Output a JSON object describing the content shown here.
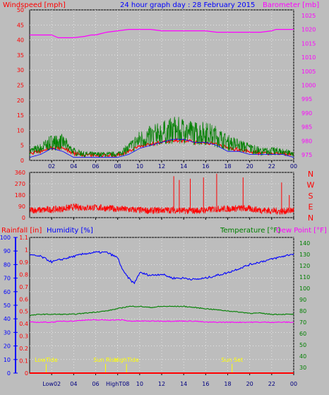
{
  "colors": {
    "background": "#bdbdbd",
    "grid": "#ffffff",
    "wind": "#ff0000",
    "wind_gust": "#008000",
    "wind_avg": "#0000ff",
    "barometer": "#ff00ff",
    "direction": "#ff0000",
    "rain": "#ff0000",
    "humidity": "#0000ff",
    "temperature": "#008000",
    "dewpoint": "#ff00ff",
    "annotation": "#ffff00"
  },
  "top": {
    "left_title": "Windspeed [mph]",
    "center_title": "24 hour graph day : 28 February 2015",
    "right_title": "Barometer [mb]"
  },
  "chart_data": [
    {
      "type": "line",
      "name": "wind_pressure",
      "x_ticks": [
        "02",
        "04",
        "06",
        "08",
        "10",
        "12",
        "14",
        "16",
        "18",
        "20",
        "22",
        "00"
      ],
      "left_axis": {
        "label": "Windspeed [mph]",
        "ticks": [
          0,
          5,
          10,
          15,
          20,
          25,
          30,
          35,
          40,
          45,
          50
        ],
        "ylim": [
          0,
          50
        ]
      },
      "right_axis": {
        "label": "Barometer [mb]",
        "ticks": [
          975,
          980,
          985,
          990,
          995,
          1000,
          1005,
          1010,
          1015,
          1020,
          1025
        ],
        "ylim": [
          973,
          1027
        ]
      },
      "x_hours": [
        0,
        1,
        2,
        3,
        4,
        5,
        6,
        7,
        8,
        9,
        10,
        11,
        12,
        13,
        14,
        15,
        16,
        17,
        18,
        19,
        20,
        21,
        22,
        23,
        24
      ],
      "wind_gust": [
        3,
        4,
        6,
        6,
        3,
        2,
        2,
        2,
        2,
        4,
        7,
        8,
        9,
        10,
        10,
        9,
        9,
        8,
        6,
        5,
        4,
        3,
        3,
        3,
        2
      ],
      "wind_avg": [
        1,
        2,
        4,
        3,
        1,
        1,
        1,
        1,
        1,
        2,
        4,
        5,
        6,
        7,
        7,
        6,
        6,
        5,
        3,
        3,
        2,
        2,
        2,
        2,
        1
      ],
      "barometer_x": [
        0,
        1,
        2,
        2.6,
        3,
        4,
        5,
        5.6,
        6,
        6.5,
        7,
        8,
        9,
        10,
        11,
        12,
        13,
        14,
        15,
        16,
        17,
        18,
        19,
        20,
        21,
        22,
        22.4,
        23,
        24
      ],
      "barometer": [
        1018,
        1018,
        1018,
        1017,
        1017,
        1017,
        1017.5,
        1018,
        1018,
        1018.5,
        1019,
        1019.5,
        1020,
        1020,
        1020,
        1019.5,
        1019.5,
        1019.5,
        1019.5,
        1019.5,
        1019,
        1019,
        1019,
        1019,
        1019,
        1019.5,
        1020,
        1020,
        1020
      ]
    },
    {
      "type": "scatter",
      "name": "wind_direction",
      "x_ticks": [
        "02",
        "04",
        "06",
        "08",
        "10",
        "12",
        "14",
        "16",
        "18",
        "20",
        "22",
        "00"
      ],
      "left_axis": {
        "ticks": [
          0,
          90,
          180,
          270,
          360
        ],
        "ylim": [
          0,
          360
        ]
      },
      "right_axis": {
        "labels": [
          "N",
          "W",
          "S",
          "E",
          "N"
        ]
      },
      "x_hours": [
        0,
        1,
        2,
        3,
        4,
        5,
        6,
        7,
        8,
        9,
        10,
        11,
        12,
        13,
        14,
        15,
        16,
        17,
        18,
        19,
        20,
        21,
        22,
        23,
        24
      ],
      "direction": [
        60,
        60,
        65,
        70,
        85,
        80,
        80,
        75,
        70,
        65,
        60,
        55,
        60,
        60,
        55,
        55,
        60,
        70,
        70,
        75,
        70,
        60,
        55,
        50,
        60
      ],
      "spikes_x": [
        13.1,
        13.6,
        14.6,
        15.8,
        17.0,
        19.4,
        22.9,
        23.6
      ],
      "spikes_deg": [
        330,
        300,
        310,
        320,
        350,
        320,
        280,
        180
      ]
    },
    {
      "type": "line",
      "name": "rain_humidity_temp",
      "titles": {
        "rain": "Rainfall [in]",
        "humidity": "Humidity [%]",
        "temperature": "Temperature [°F]",
        "dewpoint": "Dew Point [°F]"
      },
      "x_ticks": [
        "02",
        "04",
        "06",
        "08",
        "10",
        "12",
        "14",
        "16",
        "18",
        "20",
        "22",
        "00"
      ],
      "annotations": [
        {
          "label": "LowTide",
          "hour": 1.5
        },
        {
          "label": "Sun Rise",
          "hour": 6.9
        },
        {
          "label": "HighTide",
          "hour": 8.8
        },
        {
          "label": "Sun Set",
          "hour": 18.4
        }
      ],
      "x_tick_overrides": {
        "02": "Low02",
        "08": "HighT08"
      },
      "humidity_axis": {
        "ticks": [
          0,
          10,
          20,
          30,
          40,
          50,
          60,
          70,
          80,
          90,
          100
        ],
        "ylim": [
          0,
          100
        ]
      },
      "rain_axis": {
        "ticks": [
          0,
          0.1,
          0.2,
          0.3,
          0.4,
          0.5,
          0.6,
          0.7,
          0.8,
          0.9,
          1,
          1.1
        ],
        "ylim": [
          0,
          1.1
        ]
      },
      "temp_axis": {
        "ticks": [
          30,
          40,
          50,
          60,
          70,
          80,
          90,
          100,
          110,
          120,
          130,
          140
        ],
        "ylim": [
          25,
          145
        ]
      },
      "x_hours": [
        0,
        1,
        2,
        3,
        4,
        5,
        6,
        7,
        8,
        8.5,
        9,
        9.5,
        10,
        11,
        12,
        13,
        14,
        15,
        16,
        17,
        18,
        19,
        20,
        21,
        22,
        23,
        24
      ],
      "humidity": [
        87,
        86,
        82,
        84,
        86,
        88,
        89,
        89,
        85,
        75,
        70,
        66,
        74,
        72,
        73,
        70,
        70,
        69,
        70,
        72,
        74,
        77,
        80,
        82,
        84,
        86,
        88
      ],
      "temperature": [
        76,
        77,
        77,
        77,
        77,
        78,
        79,
        80,
        82,
        83,
        84,
        84,
        84,
        83,
        84,
        84,
        84,
        83,
        82,
        81,
        80,
        79,
        78,
        78,
        77,
        77,
        77
      ],
      "dewpoint": [
        70,
        70,
        70,
        71,
        71,
        72,
        72,
        72,
        72,
        72,
        71,
        71,
        71,
        71,
        71,
        71,
        71,
        71,
        70,
        70,
        70,
        70,
        70,
        70,
        70,
        70,
        70
      ],
      "rainfall": [
        0,
        0,
        0,
        0,
        0,
        0,
        0,
        0,
        0,
        0,
        0,
        0,
        0,
        0,
        0,
        0,
        0,
        0,
        0,
        0,
        0,
        0,
        0,
        0,
        0,
        0,
        0
      ]
    }
  ]
}
